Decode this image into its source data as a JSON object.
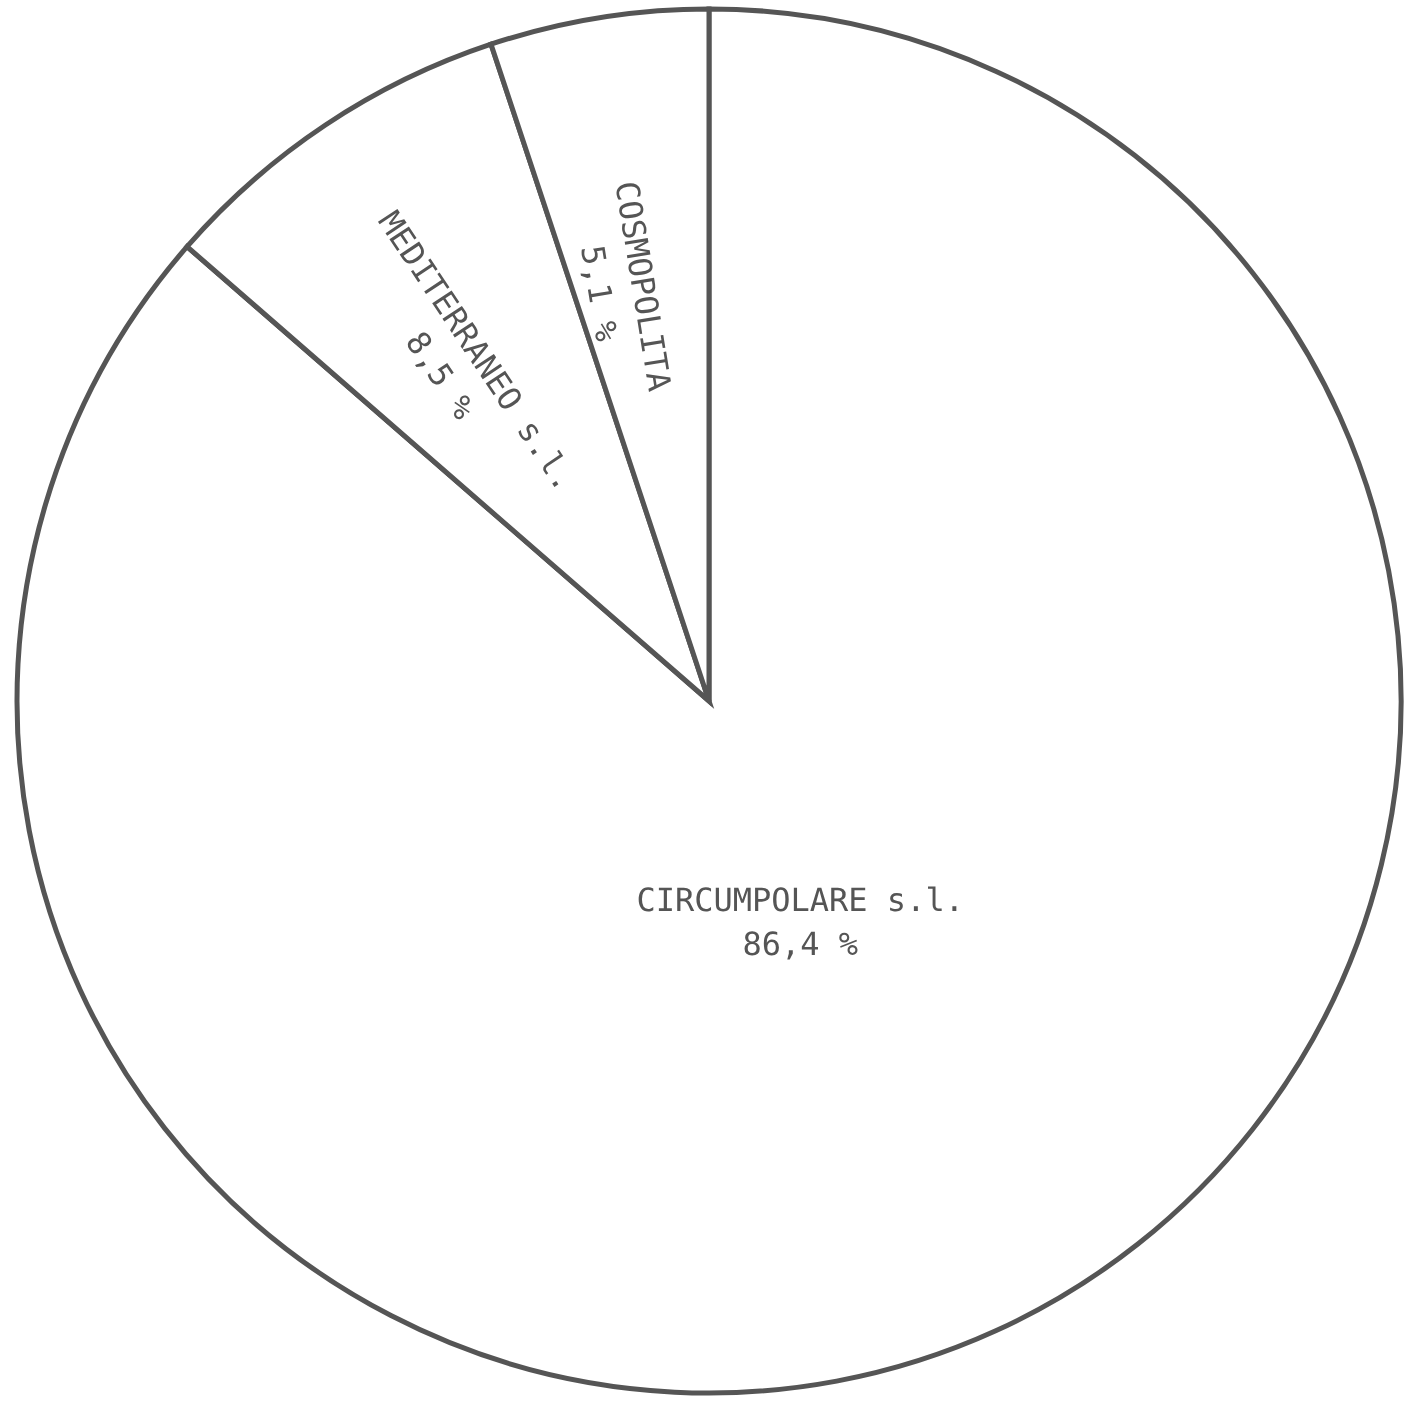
{
  "chart_data": {
    "type": "pie",
    "categories": [
      "CIRCUMPOLARE s.l.",
      "MEDITERRANEO s.l.",
      "COSMOPOLITA"
    ],
    "values": [
      86.4,
      8.5,
      5.1
    ],
    "value_labels": [
      "86,4 %",
      "8,5 %",
      "5,1 %"
    ],
    "colors": [
      "#ffffff",
      "#ffffff",
      "#ffffff"
    ]
  }
}
